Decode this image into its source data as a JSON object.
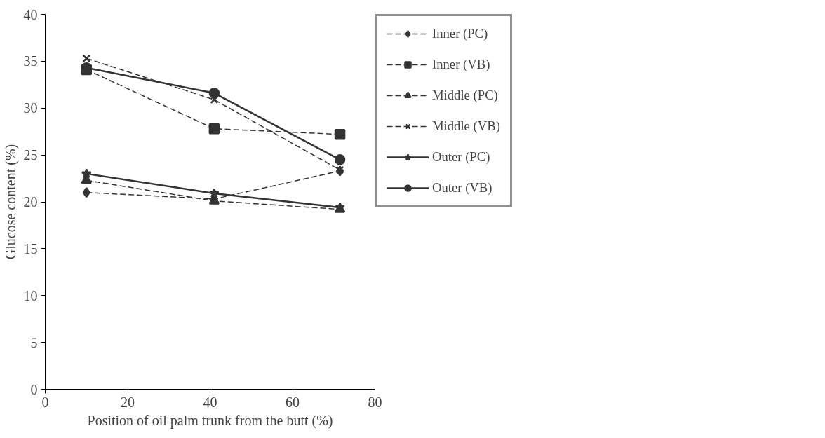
{
  "chart_data": {
    "type": "line",
    "xlabel": "Position of oil palm trunk from the butt (%)",
    "ylabel": "Glucose content (%)",
    "x": [
      10,
      41,
      71.5
    ],
    "xlim": [
      0,
      80
    ],
    "xticks": [
      0,
      20,
      40,
      60,
      80
    ],
    "ylim": [
      0,
      40
    ],
    "yticks": [
      0,
      5,
      10,
      15,
      20,
      25,
      30,
      35,
      40
    ],
    "grid": false,
    "legend": "right",
    "series": [
      {
        "name": "Inner (PC)",
        "color": "#333333",
        "values": [
          21,
          20.3,
          23.3
        ],
        "marker": "diamond",
        "line_style": "dashed"
      },
      {
        "name": "Inner (VB)",
        "color": "#333333",
        "values": [
          34.1,
          27.8,
          27.2
        ],
        "marker": "square",
        "line_style": "dashed"
      },
      {
        "name": "Middle (PC)",
        "color": "#333333",
        "values": [
          22.3,
          20.1,
          19.2
        ],
        "marker": "triangle",
        "line_style": "dashed"
      },
      {
        "name": "Middle (VB)",
        "color": "#333333",
        "values": [
          35.3,
          30.9,
          23.4
        ],
        "marker": "cross",
        "line_style": "dashed"
      },
      {
        "name": "Outer (PC)",
        "color": "#333333",
        "values": [
          23,
          20.9,
          19.4
        ],
        "marker": "star",
        "line_style": "solid"
      },
      {
        "name": "Outer (VB)",
        "color": "#333333",
        "values": [
          34.3,
          31.6,
          24.5
        ],
        "marker": "circle",
        "line_style": "solid"
      }
    ]
  }
}
